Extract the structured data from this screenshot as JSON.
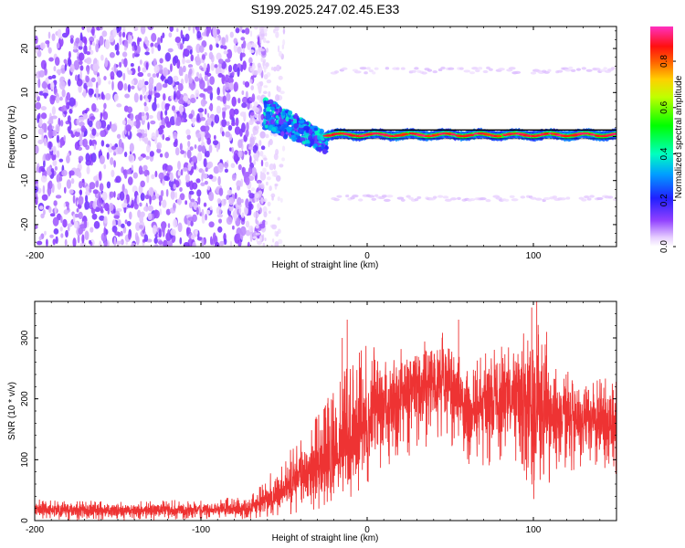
{
  "chart_data": [
    {
      "type": "heatmap",
      "title": "S199.2025.247.02.45.E33",
      "xlabel": "Height of straight line (km)",
      "ylabel": "Frequency (Hz)",
      "xlim": [
        -200,
        150
      ],
      "ylim": [
        -25,
        25
      ],
      "xticks": [
        -200,
        -100,
        0,
        100
      ],
      "yticks": [
        -20,
        -10,
        0,
        10,
        20
      ],
      "colorbar": {
        "label": "Normalized spectral amplitude",
        "range": [
          0.0,
          0.95
        ],
        "ticks": [
          "0.0",
          "0.2",
          "0.4",
          "0.6",
          "0.8"
        ],
        "tick_values": [
          0.0,
          0.2,
          0.4,
          0.6,
          0.8
        ]
      },
      "regions": [
        {
          "name": "noise",
          "x": [
            -200,
            -62
          ],
          "y": [
            -25,
            25
          ],
          "amplitude": 0.08
        },
        {
          "name": "signal-onset",
          "x": [
            -62,
            -25
          ],
          "y": [
            -3,
            9
          ],
          "amplitude": 0.35
        },
        {
          "name": "carrier",
          "x": [
            -25,
            150
          ],
          "y": [
            0,
            1
          ],
          "amplitude": 0.92
        },
        {
          "name": "sideband-upper",
          "x": [
            -20,
            150
          ],
          "y": [
            15,
            15
          ],
          "amplitude": 0.05
        },
        {
          "name": "sideband-lower",
          "x": [
            -20,
            150
          ],
          "y": [
            -14,
            -14
          ],
          "amplitude": 0.05
        }
      ],
      "reference_line": {
        "y1": 1.5,
        "y2": -0.5
      }
    },
    {
      "type": "line",
      "title": "",
      "xlabel": "Height of straight line (km)",
      "ylabel": "SNR (10 * v/v)",
      "xlim": [
        -200,
        150
      ],
      "ylim": [
        0,
        360
      ],
      "xticks": [
        -200,
        -100,
        0,
        100
      ],
      "yticks": [
        0,
        100,
        200,
        300
      ],
      "series": [
        {
          "name": "SNR",
          "color": "#ee3333",
          "envelope": [
            {
              "x": -200,
              "lo": 0,
              "mean": 18,
              "hi": 35
            },
            {
              "x": -150,
              "lo": 0,
              "mean": 17,
              "hi": 32
            },
            {
              "x": -100,
              "lo": 2,
              "mean": 18,
              "hi": 35
            },
            {
              "x": -70,
              "lo": 2,
              "mean": 20,
              "hi": 40
            },
            {
              "x": -55,
              "lo": 5,
              "mean": 40,
              "hi": 90
            },
            {
              "x": -40,
              "lo": 10,
              "mean": 70,
              "hi": 140
            },
            {
              "x": -25,
              "lo": 20,
              "mean": 100,
              "hi": 210
            },
            {
              "x": -15,
              "lo": 20,
              "mean": 115,
              "hi": 250
            },
            {
              "x": 0,
              "lo": 60,
              "mean": 160,
              "hi": 290
            },
            {
              "x": 15,
              "lo": 90,
              "mean": 200,
              "hi": 290
            },
            {
              "x": 30,
              "lo": 110,
              "mean": 225,
              "hi": 300
            },
            {
              "x": 50,
              "lo": 120,
              "mean": 230,
              "hi": 320
            },
            {
              "x": 60,
              "lo": 80,
              "mean": 180,
              "hi": 260
            },
            {
              "x": 75,
              "lo": 90,
              "mean": 200,
              "hi": 290
            },
            {
              "x": 90,
              "lo": 90,
              "mean": 205,
              "hi": 300
            },
            {
              "x": 100,
              "lo": 20,
              "mean": 200,
              "hi": 360
            },
            {
              "x": 115,
              "lo": 80,
              "mean": 175,
              "hi": 250
            },
            {
              "x": 130,
              "lo": 70,
              "mean": 165,
              "hi": 240
            },
            {
              "x": 150,
              "lo": 70,
              "mean": 160,
              "hi": 230
            }
          ]
        }
      ]
    }
  ]
}
